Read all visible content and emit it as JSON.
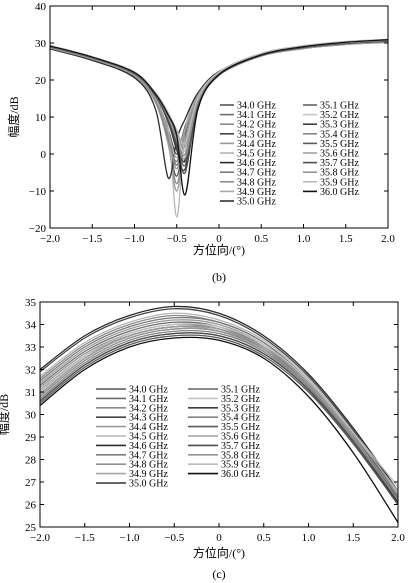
{
  "chart_data": [
    {
      "type": "line",
      "panel_label": "(b)",
      "xlabel": "方位向/(°)",
      "ylabel": "幅度/dB",
      "xlim": [
        -2.0,
        2.0
      ],
      "ylim": [
        -20,
        40
      ],
      "xticks": [
        "−2.0",
        "−1.5",
        "−1.0",
        "−0.5",
        "0",
        "0.5",
        "1.0",
        "1.5",
        "2.0"
      ],
      "yticks": [
        "−20",
        "−10",
        "0",
        "10",
        "20",
        "30",
        "40"
      ],
      "grid": false,
      "legend_position": "right",
      "x": [
        -2.0,
        -1.5,
        -1.0,
        -0.75,
        -0.6,
        -0.5,
        -0.4,
        -0.25,
        0.0,
        0.5,
        1.0,
        1.5,
        2.0
      ],
      "series": [
        {
          "name": "34.0 GHz",
          "color": "#555555",
          "values": [
            28.5,
            25.5,
            21.0,
            14.0,
            3.0,
            -6.0,
            5.0,
            15.0,
            21.5,
            26.5,
            28.5,
            29.6,
            30.2
          ]
        },
        {
          "name": "34.1 GHz",
          "color": "#6e6e6e",
          "values": [
            28.7,
            25.7,
            21.3,
            14.8,
            5.0,
            -3.0,
            6.0,
            15.5,
            21.8,
            26.7,
            28.7,
            29.8,
            30.4
          ]
        },
        {
          "name": "34.2 GHz",
          "color": "#8a8a8a",
          "values": [
            28.6,
            25.6,
            21.1,
            14.3,
            3.5,
            -8.0,
            4.0,
            15.2,
            21.6,
            26.6,
            28.6,
            29.7,
            30.3
          ]
        },
        {
          "name": "34.3 GHz",
          "color": "#444444",
          "values": [
            28.8,
            25.8,
            21.4,
            15.0,
            6.5,
            0.0,
            7.5,
            16.0,
            22.0,
            26.8,
            28.8,
            29.9,
            30.5
          ]
        },
        {
          "name": "34.4 GHz",
          "color": "#9a9a9a",
          "values": [
            28.5,
            25.4,
            20.9,
            13.8,
            2.5,
            -10.0,
            3.5,
            14.8,
            21.4,
            26.5,
            28.5,
            29.6,
            30.2
          ]
        },
        {
          "name": "34.5 GHz",
          "color": "#b5b5b5",
          "values": [
            28.9,
            25.9,
            21.5,
            15.2,
            7.0,
            -17.0,
            6.5,
            15.8,
            22.1,
            26.9,
            28.9,
            30.0,
            30.6
          ]
        },
        {
          "name": "34.6 GHz",
          "color": "#2a2a2a",
          "values": [
            28.4,
            25.3,
            20.6,
            12.0,
            -6.5,
            4.0,
            9.5,
            16.5,
            22.3,
            27.0,
            29.0,
            30.1,
            30.7
          ]
        },
        {
          "name": "34.7 GHz",
          "color": "#7a7a7a",
          "values": [
            28.6,
            25.6,
            21.2,
            14.5,
            4.0,
            -2.0,
            6.8,
            15.6,
            21.9,
            26.8,
            28.8,
            29.9,
            30.5
          ]
        },
        {
          "name": "34.8 GHz",
          "color": "#909090",
          "values": [
            28.7,
            25.7,
            21.3,
            14.6,
            4.5,
            -4.0,
            6.2,
            15.4,
            21.7,
            26.7,
            28.7,
            29.8,
            30.4
          ]
        },
        {
          "name": "34.9 GHz",
          "color": "#a8a8a8",
          "values": [
            28.8,
            25.8,
            21.4,
            15.0,
            6.0,
            -1.0,
            7.0,
            15.9,
            22.0,
            26.9,
            28.9,
            30.0,
            30.6
          ]
        },
        {
          "name": "35.0 GHz",
          "color": "#333333",
          "values": [
            29.0,
            26.0,
            21.8,
            15.8,
            9.0,
            2.0,
            -1.5,
            14.0,
            21.8,
            26.9,
            29.0,
            30.1,
            30.7
          ]
        },
        {
          "name": "35.1 GHz",
          "color": "#666666",
          "values": [
            29.1,
            26.1,
            21.9,
            16.0,
            10.0,
            4.0,
            -3.0,
            13.5,
            21.6,
            26.8,
            28.9,
            30.0,
            30.6
          ]
        },
        {
          "name": "35.2 GHz",
          "color": "#c4c4c4",
          "values": [
            29.2,
            26.2,
            22.0,
            16.3,
            10.5,
            5.0,
            1.0,
            14.5,
            22.0,
            27.0,
            29.1,
            30.2,
            30.8
          ]
        },
        {
          "name": "35.3 GHz",
          "color": "#3d3d3d",
          "values": [
            29.0,
            26.0,
            21.7,
            15.6,
            8.5,
            1.0,
            -4.0,
            13.0,
            21.4,
            26.7,
            28.8,
            29.9,
            30.5
          ]
        },
        {
          "name": "35.4 GHz",
          "color": "#858585",
          "values": [
            29.1,
            26.1,
            21.8,
            15.9,
            9.5,
            3.0,
            0.0,
            14.2,
            21.7,
            26.9,
            29.0,
            30.1,
            30.7
          ]
        },
        {
          "name": "35.5 GHz",
          "color": "#5a5a5a",
          "values": [
            29.2,
            26.2,
            22.0,
            16.2,
            10.2,
            4.5,
            -2.0,
            13.8,
            21.6,
            26.8,
            28.9,
            30.0,
            30.6
          ]
        },
        {
          "name": "35.6 GHz",
          "color": "#a0a0a0",
          "values": [
            29.3,
            26.3,
            22.1,
            16.4,
            11.0,
            6.0,
            2.0,
            14.8,
            22.1,
            27.1,
            29.2,
            30.3,
            30.9
          ]
        },
        {
          "name": "35.7 GHz",
          "color": "#4e4e4e",
          "values": [
            29.0,
            26.0,
            21.7,
            15.7,
            9.0,
            2.5,
            -5.0,
            12.5,
            21.3,
            26.7,
            28.8,
            29.9,
            30.5
          ]
        },
        {
          "name": "35.8 GHz",
          "color": "#959595",
          "values": [
            29.1,
            26.1,
            21.9,
            16.1,
            10.0,
            4.0,
            -1.0,
            14.0,
            21.7,
            26.9,
            29.0,
            30.1,
            30.7
          ]
        },
        {
          "name": "35.9 GHz",
          "color": "#bbbbbb",
          "values": [
            29.3,
            26.3,
            22.2,
            16.5,
            11.2,
            6.5,
            3.0,
            15.0,
            22.2,
            27.2,
            29.3,
            30.4,
            31.0
          ]
        },
        {
          "name": "36.0 GHz",
          "color": "#111111",
          "values": [
            29.2,
            26.2,
            22.0,
            16.2,
            10.5,
            5.0,
            -11.0,
            12.0,
            21.5,
            26.8,
            29.0,
            30.2,
            30.9
          ]
        }
      ]
    },
    {
      "type": "line",
      "panel_label": "(c)",
      "xlabel": "方位向/(°)",
      "ylabel": "幅度/dB",
      "xlim": [
        -2.0,
        2.0
      ],
      "ylim": [
        25,
        35
      ],
      "xticks": [
        "−2.0",
        "−1.5",
        "−1.0",
        "−0.5",
        "0",
        "0.5",
        "1.0",
        "1.5",
        "2.0"
      ],
      "yticks": [
        "25",
        "26",
        "27",
        "28",
        "29",
        "30",
        "31",
        "32",
        "33",
        "34",
        "35"
      ],
      "grid": false,
      "legend_position": "left",
      "x": [
        -2.0,
        -1.5,
        -1.0,
        -0.5,
        0.0,
        0.5,
        1.0,
        1.5,
        2.0
      ],
      "series": [
        {
          "name": "34.0 GHz",
          "color": "#555555",
          "values": [
            31.0,
            32.6,
            33.5,
            33.9,
            33.8,
            32.9,
            31.2,
            28.8,
            26.0
          ]
        },
        {
          "name": "34.1 GHz",
          "color": "#6e6e6e",
          "values": [
            31.3,
            32.8,
            33.7,
            34.1,
            33.9,
            33.0,
            31.3,
            28.9,
            26.2
          ]
        },
        {
          "name": "34.2 GHz",
          "color": "#8a8a8a",
          "values": [
            31.6,
            33.1,
            34.0,
            34.4,
            34.1,
            33.2,
            31.5,
            29.1,
            26.3
          ]
        },
        {
          "name": "34.3 GHz",
          "color": "#444444",
          "values": [
            31.9,
            33.4,
            34.3,
            34.7,
            34.4,
            33.4,
            31.7,
            29.3,
            26.5
          ]
        },
        {
          "name": "34.4 GHz",
          "color": "#9a9a9a",
          "values": [
            31.4,
            32.9,
            33.8,
            34.2,
            34.0,
            33.1,
            31.4,
            29.0,
            26.3
          ]
        },
        {
          "name": "34.5 GHz",
          "color": "#b5b5b5",
          "values": [
            31.7,
            33.2,
            34.1,
            34.5,
            34.2,
            33.3,
            31.6,
            29.2,
            26.4
          ]
        },
        {
          "name": "34.6 GHz",
          "color": "#2a2a2a",
          "values": [
            32.0,
            33.5,
            34.4,
            34.8,
            34.5,
            33.5,
            31.8,
            29.4,
            26.6
          ]
        },
        {
          "name": "34.7 GHz",
          "color": "#7a7a7a",
          "values": [
            31.5,
            33.0,
            33.9,
            34.3,
            34.1,
            33.2,
            31.5,
            29.1,
            26.4
          ]
        },
        {
          "name": "34.8 GHz",
          "color": "#909090",
          "values": [
            31.2,
            32.7,
            33.6,
            34.0,
            33.8,
            32.9,
            31.2,
            28.8,
            26.1
          ]
        },
        {
          "name": "34.9 GHz",
          "color": "#a8a8a8",
          "values": [
            31.1,
            32.6,
            33.5,
            33.9,
            33.7,
            32.8,
            31.1,
            28.7,
            26.0
          ]
        },
        {
          "name": "35.0 GHz",
          "color": "#333333",
          "values": [
            30.6,
            32.2,
            33.2,
            33.6,
            33.5,
            32.7,
            31.1,
            28.8,
            26.1
          ]
        },
        {
          "name": "35.1 GHz",
          "color": "#666666",
          "values": [
            30.8,
            32.4,
            33.4,
            33.8,
            33.7,
            32.9,
            31.3,
            29.0,
            26.3
          ]
        },
        {
          "name": "35.2 GHz",
          "color": "#c4c4c4",
          "values": [
            31.0,
            32.6,
            33.6,
            34.0,
            33.9,
            33.1,
            31.5,
            29.2,
            26.5
          ]
        },
        {
          "name": "35.3 GHz",
          "color": "#3d3d3d",
          "values": [
            30.9,
            32.5,
            33.5,
            33.9,
            33.8,
            33.0,
            31.4,
            29.1,
            26.4
          ]
        },
        {
          "name": "35.4 GHz",
          "color": "#858585",
          "values": [
            30.7,
            32.3,
            33.3,
            33.7,
            33.6,
            32.8,
            31.2,
            28.9,
            26.2
          ]
        },
        {
          "name": "35.5 GHz",
          "color": "#5a5a5a",
          "values": [
            30.5,
            32.1,
            33.1,
            33.5,
            33.4,
            32.6,
            31.0,
            28.7,
            26.0
          ]
        },
        {
          "name": "35.6 GHz",
          "color": "#a0a0a0",
          "values": [
            30.9,
            32.5,
            33.5,
            33.9,
            33.8,
            33.0,
            31.4,
            29.1,
            26.6
          ]
        },
        {
          "name": "35.7 GHz",
          "color": "#4e4e4e",
          "values": [
            30.6,
            32.2,
            33.2,
            33.6,
            33.5,
            32.7,
            31.1,
            28.8,
            26.0
          ]
        },
        {
          "name": "35.8 GHz",
          "color": "#959595",
          "values": [
            30.8,
            32.4,
            33.4,
            33.8,
            33.7,
            32.9,
            31.3,
            29.0,
            26.4
          ]
        },
        {
          "name": "35.9 GHz",
          "color": "#bbbbbb",
          "values": [
            31.0,
            32.6,
            33.6,
            34.0,
            33.9,
            33.1,
            31.5,
            29.2,
            26.8
          ]
        },
        {
          "name": "36.0 GHz",
          "color": "#111111",
          "values": [
            30.4,
            32.0,
            33.0,
            33.4,
            33.3,
            32.5,
            30.8,
            28.3,
            25.2
          ]
        }
      ]
    }
  ]
}
